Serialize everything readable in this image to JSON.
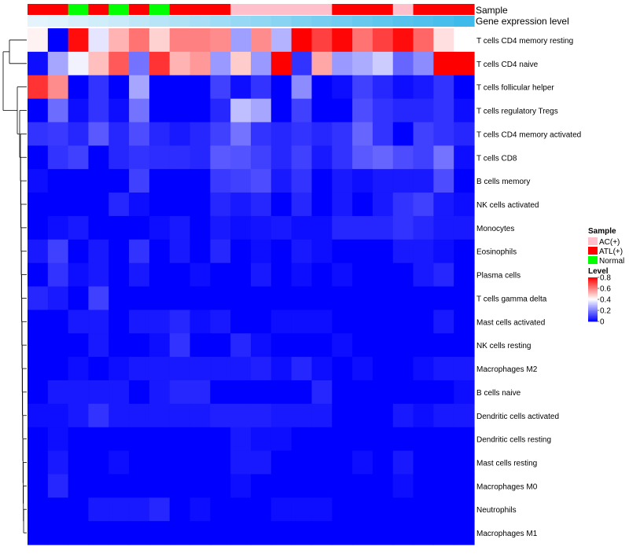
{
  "chart_data": {
    "type": "heatmap",
    "annotation_rows": [
      {
        "label": "Sample"
      },
      {
        "label": "Gene expression level"
      }
    ],
    "sample_groups": [
      "ATL(+)",
      "ATL(+)",
      "Normal",
      "ATL(+)",
      "Normal",
      "ATL(+)",
      "Normal",
      "ATL(+)",
      "ATL(+)",
      "ATL(+)",
      "AC(+)",
      "AC(+)",
      "AC(+)",
      "AC(+)",
      "AC(+)",
      "ATL(+)",
      "ATL(+)",
      "ATL(+)",
      "AC(+)",
      "ATL(+)",
      "ATL(+)",
      "ATL(+)"
    ],
    "expression_level": [
      0.02,
      0.05,
      0.1,
      0.14,
      0.19,
      0.24,
      0.29,
      0.33,
      0.38,
      0.43,
      0.48,
      0.52,
      0.57,
      0.62,
      0.67,
      0.71,
      0.76,
      0.81,
      0.86,
      0.9,
      0.95,
      1.0
    ],
    "rows": [
      "T cells CD4 memory resting",
      "T cells CD4 naive",
      "T cells follicular helper",
      "T cells regulatory  Tregs",
      "T cells CD4 memory activated",
      "T cells CD8",
      "B cells memory",
      "NK cells activated",
      "Monocytes",
      "Eosinophils",
      "Plasma cells",
      "T cells gamma delta",
      "Mast cells activated",
      "NK cells resting",
      "Macrophages M2",
      "B cells naive",
      "Dendritic cells activated",
      "Dendritic cells resting",
      "Mast cells resting",
      "Macrophages M0",
      "Neutrophils",
      "Macrophages M1"
    ],
    "values": [
      [
        0.42,
        0.0,
        0.78,
        0.36,
        0.52,
        0.62,
        0.47,
        0.6,
        0.6,
        0.58,
        0.25,
        0.58,
        0.28,
        0.8,
        0.7,
        0.79,
        0.62,
        0.7,
        0.78,
        0.64,
        0.45,
        0.4
      ],
      [
        0.02,
        0.26,
        0.38,
        0.5,
        0.66,
        0.18,
        0.72,
        0.52,
        0.56,
        0.24,
        0.48,
        0.24,
        0.8,
        0.08,
        0.54,
        0.24,
        0.27,
        0.32,
        0.16,
        0.22,
        0.8,
        0.8
      ],
      [
        0.72,
        0.58,
        0.0,
        0.08,
        0.0,
        0.26,
        0.0,
        0.0,
        0.0,
        0.1,
        0.02,
        0.08,
        0.0,
        0.22,
        0.0,
        0.02,
        0.1,
        0.06,
        0.02,
        0.04,
        0.08,
        0.0
      ],
      [
        0.0,
        0.17,
        0.02,
        0.08,
        0.02,
        0.18,
        0.0,
        0.0,
        0.0,
        0.06,
        0.3,
        0.26,
        0.0,
        0.1,
        0.0,
        0.0,
        0.12,
        0.08,
        0.06,
        0.06,
        0.08,
        0.02
      ],
      [
        0.08,
        0.09,
        0.06,
        0.14,
        0.06,
        0.12,
        0.06,
        0.04,
        0.06,
        0.1,
        0.18,
        0.08,
        0.06,
        0.08,
        0.06,
        0.08,
        0.16,
        0.08,
        0.0,
        0.1,
        0.08,
        0.06
      ],
      [
        0.0,
        0.08,
        0.1,
        0.0,
        0.06,
        0.08,
        0.07,
        0.07,
        0.06,
        0.14,
        0.13,
        0.1,
        0.06,
        0.1,
        0.04,
        0.08,
        0.14,
        0.16,
        0.12,
        0.1,
        0.18,
        0.02
      ],
      [
        0.02,
        0.0,
        0.0,
        0.0,
        0.0,
        0.1,
        0.0,
        0.0,
        0.0,
        0.09,
        0.1,
        0.12,
        0.04,
        0.08,
        0.0,
        0.04,
        0.02,
        0.04,
        0.04,
        0.04,
        0.12,
        0.0
      ],
      [
        0.0,
        0.0,
        0.0,
        0.0,
        0.06,
        0.02,
        0.0,
        0.0,
        0.0,
        0.06,
        0.04,
        0.06,
        0.0,
        0.06,
        0.0,
        0.04,
        0.0,
        0.04,
        0.08,
        0.1,
        0.04,
        0.02
      ],
      [
        0.0,
        0.02,
        0.04,
        0.0,
        0.0,
        0.0,
        0.02,
        0.04,
        0.0,
        0.04,
        0.02,
        0.03,
        0.04,
        0.02,
        0.02,
        0.06,
        0.06,
        0.06,
        0.08,
        0.06,
        0.04,
        0.04
      ],
      [
        0.04,
        0.1,
        0.0,
        0.04,
        0.0,
        0.08,
        0.0,
        0.04,
        0.0,
        0.06,
        0.0,
        0.02,
        0.0,
        0.04,
        0.02,
        0.0,
        0.0,
        0.0,
        0.04,
        0.04,
        0.02,
        0.0
      ],
      [
        0.0,
        0.08,
        0.02,
        0.04,
        0.0,
        0.04,
        0.0,
        0.0,
        0.02,
        0.0,
        0.0,
        0.04,
        0.0,
        0.02,
        0.0,
        0.02,
        0.0,
        0.0,
        0.0,
        0.04,
        0.06,
        0.0
      ],
      [
        0.06,
        0.04,
        0.0,
        0.1,
        0.0,
        0.0,
        0.0,
        0.0,
        0.0,
        0.0,
        0.0,
        0.0,
        0.0,
        0.0,
        0.0,
        0.0,
        0.0,
        0.0,
        0.0,
        0.0,
        0.0,
        0.0
      ],
      [
        0.0,
        0.0,
        0.04,
        0.04,
        0.0,
        0.04,
        0.04,
        0.06,
        0.02,
        0.04,
        0.0,
        0.0,
        0.02,
        0.02,
        0.02,
        0.0,
        0.0,
        0.0,
        0.0,
        0.0,
        0.04,
        0.0
      ],
      [
        0.0,
        0.0,
        0.0,
        0.04,
        0.0,
        0.0,
        0.02,
        0.08,
        0.0,
        0.0,
        0.06,
        0.02,
        0.0,
        0.0,
        0.0,
        0.02,
        0.0,
        0.0,
        0.0,
        0.0,
        0.0,
        0.0
      ],
      [
        0.0,
        0.0,
        0.02,
        0.0,
        0.02,
        0.04,
        0.04,
        0.04,
        0.04,
        0.04,
        0.04,
        0.05,
        0.02,
        0.06,
        0.02,
        0.0,
        0.02,
        0.0,
        0.0,
        0.02,
        0.04,
        0.04
      ],
      [
        0.0,
        0.04,
        0.04,
        0.04,
        0.04,
        0.0,
        0.04,
        0.06,
        0.06,
        0.0,
        0.0,
        0.0,
        0.0,
        0.0,
        0.06,
        0.0,
        0.0,
        0.0,
        0.0,
        0.0,
        0.0,
        0.02
      ],
      [
        0.02,
        0.02,
        0.04,
        0.08,
        0.04,
        0.04,
        0.04,
        0.04,
        0.04,
        0.05,
        0.05,
        0.05,
        0.04,
        0.04,
        0.04,
        0.0,
        0.0,
        0.0,
        0.04,
        0.02,
        0.04,
        0.04
      ],
      [
        0.0,
        0.02,
        0.0,
        0.0,
        0.0,
        0.0,
        0.0,
        0.0,
        0.0,
        0.0,
        0.04,
        0.02,
        0.02,
        0.0,
        0.0,
        0.0,
        0.0,
        0.0,
        0.0,
        0.0,
        0.0,
        0.0
      ],
      [
        0.0,
        0.04,
        0.0,
        0.0,
        0.02,
        0.0,
        0.0,
        0.0,
        0.0,
        0.0,
        0.04,
        0.04,
        0.0,
        0.0,
        0.0,
        0.0,
        0.02,
        0.0,
        0.04,
        0.0,
        0.0,
        0.0
      ],
      [
        0.0,
        0.06,
        0.0,
        0.0,
        0.0,
        0.0,
        0.0,
        0.0,
        0.0,
        0.0,
        0.02,
        0.0,
        0.0,
        0.0,
        0.0,
        0.0,
        0.0,
        0.0,
        0.02,
        0.0,
        0.0,
        0.0
      ],
      [
        0.0,
        0.0,
        0.0,
        0.04,
        0.04,
        0.04,
        0.06,
        0.0,
        0.02,
        0.0,
        0.0,
        0.0,
        0.02,
        0.02,
        0.02,
        0.0,
        0.0,
        0.0,
        0.0,
        0.0,
        0.0,
        0.0
      ],
      [
        0.0,
        0.0,
        0.0,
        0.0,
        0.0,
        0.0,
        0.0,
        0.0,
        0.0,
        0.0,
        0.0,
        0.0,
        0.0,
        0.0,
        0.0,
        0.0,
        0.0,
        0.0,
        0.0,
        0.0,
        0.0,
        0.0
      ]
    ],
    "legend_sample": {
      "title": "Sample",
      "items": [
        {
          "label": "AC(+)",
          "color": "#FFC0CB"
        },
        {
          "label": "ATL(+)",
          "color": "#FF0000"
        },
        {
          "label": "Normal",
          "color": "#00FF00"
        }
      ]
    },
    "legend_level": {
      "title": "Level",
      "range": [
        0,
        0.8
      ],
      "ticks": [
        "0.8",
        "0.6",
        "0.4",
        "0.2",
        "0"
      ],
      "tick_values": [
        0.8,
        0.6,
        0.4,
        0.2,
        0
      ]
    },
    "color_scale": {
      "low": "#0000FF",
      "mid": "#FFFFFF",
      "high": "#FF0000",
      "min": 0,
      "mid_value": 0.4,
      "max": 0.8
    },
    "expression_gradient": {
      "low": "#E8F5FC",
      "high": "#3FBBEB"
    },
    "dendrogram": "row-clustering"
  }
}
